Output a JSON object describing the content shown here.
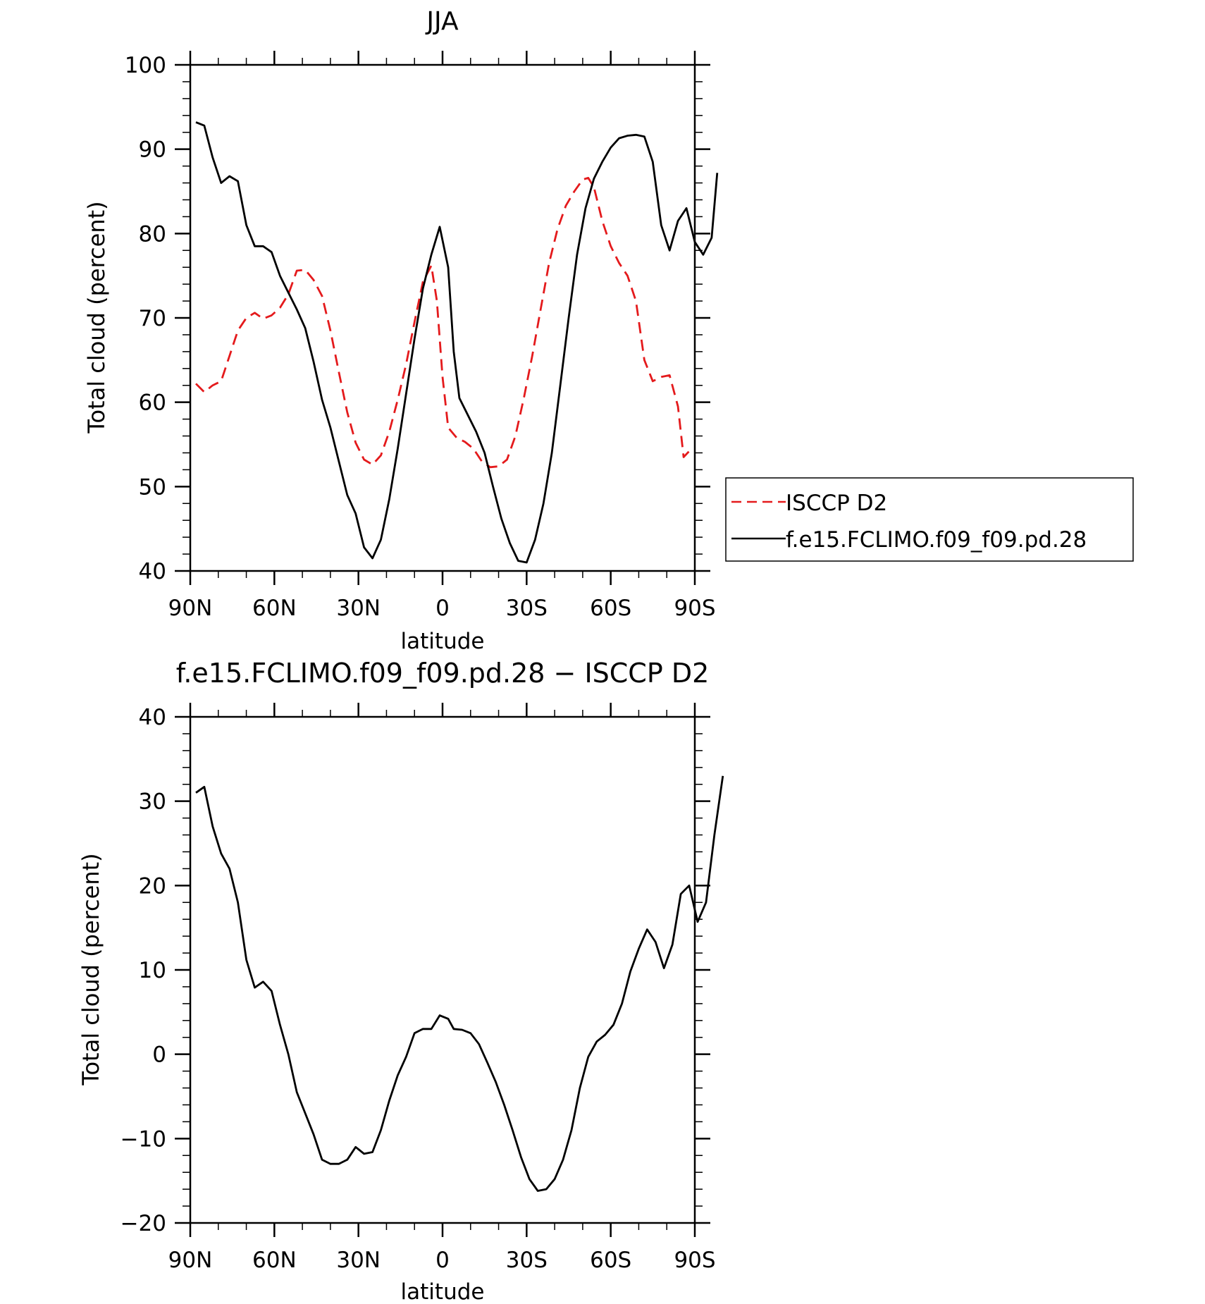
{
  "chart_data": [
    {
      "type": "line",
      "title": "JJA",
      "xlabel": "latitude",
      "ylabel": "Total cloud (percent)",
      "xlim": [
        -90,
        90
      ],
      "ylim": [
        40,
        100
      ],
      "x_ticks": [
        {
          "value": -90,
          "label": "90N"
        },
        {
          "value": -60,
          "label": "60N"
        },
        {
          "value": -30,
          "label": "30N"
        },
        {
          "value": 0,
          "label": "0"
        },
        {
          "value": 30,
          "label": "30S"
        },
        {
          "value": 60,
          "label": "60S"
        },
        {
          "value": 90,
          "label": "90S"
        }
      ],
      "y_ticks": [
        40,
        50,
        60,
        70,
        80,
        90,
        100
      ],
      "legend_position": "right",
      "series": [
        {
          "name": "ISCCP D2",
          "color": "#e41a1c",
          "dash": "dashed",
          "points": [
            [
              -88,
              62.2
            ],
            [
              -85,
              61.2
            ],
            [
              -82,
              62.0
            ],
            [
              -79,
              62.5
            ],
            [
              -76,
              65.5
            ],
            [
              -73,
              68.5
            ],
            [
              -70,
              70.0
            ],
            [
              -67,
              70.6
            ],
            [
              -64,
              69.9
            ],
            [
              -61,
              70.3
            ],
            [
              -58,
              71.2
            ],
            [
              -55,
              72.8
            ],
            [
              -52,
              75.6
            ],
            [
              -49,
              75.7
            ],
            [
              -46,
              74.5
            ],
            [
              -43,
              72.6
            ],
            [
              -40,
              68.5
            ],
            [
              -37,
              63.6
            ],
            [
              -34,
              58.8
            ],
            [
              -31,
              55.2
            ],
            [
              -28,
              53.2
            ],
            [
              -25,
              52.6
            ],
            [
              -22,
              53.7
            ],
            [
              -19,
              56.5
            ],
            [
              -16,
              60.3
            ],
            [
              -13,
              64.5
            ],
            [
              -10,
              69.5
            ],
            [
              -7,
              74.3
            ],
            [
              -4,
              76.2
            ],
            [
              -2,
              72.0
            ],
            [
              0,
              63.0
            ],
            [
              2,
              57.0
            ],
            [
              5,
              55.8
            ],
            [
              8,
              55.3
            ],
            [
              11,
              54.5
            ],
            [
              14,
              53.0
            ],
            [
              17,
              52.3
            ],
            [
              20,
              52.4
            ],
            [
              23,
              53.2
            ],
            [
              26,
              56.0
            ],
            [
              29,
              60.5
            ],
            [
              32,
              65.5
            ],
            [
              35,
              71.0
            ],
            [
              38,
              76.5
            ],
            [
              41,
              80.5
            ],
            [
              44,
              83.3
            ],
            [
              47,
              85.0
            ],
            [
              50,
              86.4
            ],
            [
              52,
              86.6
            ],
            [
              54,
              85.5
            ],
            [
              57,
              81.5
            ],
            [
              60,
              78.5
            ],
            [
              63,
              76.5
            ],
            [
              66,
              75.0
            ],
            [
              69,
              72.0
            ],
            [
              72,
              65.0
            ],
            [
              75,
              62.5
            ],
            [
              78,
              63.0
            ],
            [
              81,
              63.2
            ],
            [
              84,
              59.5
            ],
            [
              86,
              53.5
            ],
            [
              88,
              54.2
            ]
          ]
        },
        {
          "name": "f.e15.FCLIMO.f09_f09.pd.28",
          "color": "#000000",
          "dash": "solid",
          "points": [
            [
              -88,
              93.2
            ],
            [
              -85,
              92.8
            ],
            [
              -82,
              89.0
            ],
            [
              -79,
              86.0
            ],
            [
              -76,
              86.8
            ],
            [
              -73,
              86.2
            ],
            [
              -70,
              81.0
            ],
            [
              -67,
              78.5
            ],
            [
              -64,
              78.5
            ],
            [
              -61,
              77.8
            ],
            [
              -58,
              75.0
            ],
            [
              -55,
              73.0
            ],
            [
              -52,
              71.0
            ],
            [
              -49,
              68.8
            ],
            [
              -46,
              64.8
            ],
            [
              -43,
              60.3
            ],
            [
              -40,
              57.0
            ],
            [
              -37,
              53.0
            ],
            [
              -34,
              49.0
            ],
            [
              -31,
              46.8
            ],
            [
              -28,
              42.8
            ],
            [
              -25,
              41.5
            ],
            [
              -22,
              43.7
            ],
            [
              -19,
              48.5
            ],
            [
              -16,
              54.5
            ],
            [
              -13,
              61.0
            ],
            [
              -10,
              67.5
            ],
            [
              -7,
              73.5
            ],
            [
              -4,
              77.5
            ],
            [
              -1,
              80.8
            ],
            [
              2,
              76.0
            ],
            [
              4,
              66.0
            ],
            [
              6,
              60.5
            ],
            [
              9,
              58.5
            ],
            [
              12,
              56.5
            ],
            [
              15,
              54.0
            ],
            [
              18,
              50.0
            ],
            [
              21,
              46.2
            ],
            [
              24,
              43.3
            ],
            [
              27,
              41.2
            ],
            [
              30,
              41.0
            ],
            [
              33,
              43.7
            ],
            [
              36,
              48.0
            ],
            [
              39,
              54.0
            ],
            [
              42,
              62.0
            ],
            [
              45,
              70.0
            ],
            [
              48,
              77.5
            ],
            [
              51,
              83.0
            ],
            [
              54,
              86.5
            ],
            [
              57,
              88.5
            ],
            [
              60,
              90.2
            ],
            [
              63,
              91.3
            ],
            [
              66,
              91.6
            ],
            [
              69,
              91.7
            ],
            [
              72,
              91.5
            ],
            [
              75,
              88.5
            ],
            [
              78,
              81.0
            ],
            [
              81,
              78.0
            ],
            [
              84,
              81.5
            ],
            [
              87,
              83.0
            ],
            [
              90,
              79.0
            ],
            [
              93,
              77.5
            ],
            [
              96,
              79.5
            ],
            [
              98,
              87.2
            ]
          ]
        }
      ]
    },
    {
      "type": "line",
      "title": "f.e15.FCLIMO.f09_f09.pd.28 − ISCCP D2",
      "xlabel": "latitude",
      "ylabel": "Total cloud (percent)",
      "xlim": [
        -90,
        90
      ],
      "ylim": [
        -20,
        40
      ],
      "x_ticks": [
        {
          "value": -90,
          "label": "90N"
        },
        {
          "value": -60,
          "label": "60N"
        },
        {
          "value": -30,
          "label": "30N"
        },
        {
          "value": 0,
          "label": "0"
        },
        {
          "value": 30,
          "label": "30S"
        },
        {
          "value": 60,
          "label": "60S"
        },
        {
          "value": 90,
          "label": "90S"
        }
      ],
      "y_ticks": [
        -20,
        -10,
        0,
        10,
        20,
        30,
        40
      ],
      "series": [
        {
          "color": "#000000",
          "dash": "solid",
          "points": [
            [
              -88,
              31.0
            ],
            [
              -85,
              31.7
            ],
            [
              -82,
              27.0
            ],
            [
              -79,
              23.8
            ],
            [
              -76,
              22.0
            ],
            [
              -73,
              18.0
            ],
            [
              -70,
              11.2
            ],
            [
              -67,
              7.9
            ],
            [
              -64,
              8.6
            ],
            [
              -61,
              7.5
            ],
            [
              -58,
              3.5
            ],
            [
              -55,
              0.0
            ],
            [
              -52,
              -4.5
            ],
            [
              -49,
              -7.0
            ],
            [
              -46,
              -9.5
            ],
            [
              -43,
              -12.5
            ],
            [
              -40,
              -13.0
            ],
            [
              -37,
              -13.0
            ],
            [
              -34,
              -12.5
            ],
            [
              -31,
              -11.0
            ],
            [
              -28,
              -11.8
            ],
            [
              -25,
              -11.6
            ],
            [
              -22,
              -9.0
            ],
            [
              -19,
              -5.5
            ],
            [
              -16,
              -2.5
            ],
            [
              -13,
              -0.3
            ],
            [
              -10,
              2.5
            ],
            [
              -7,
              3.0
            ],
            [
              -4,
              3.0
            ],
            [
              -1,
              4.6
            ],
            [
              2,
              4.2
            ],
            [
              4,
              3.0
            ],
            [
              7,
              2.9
            ],
            [
              10,
              2.5
            ],
            [
              13,
              1.2
            ],
            [
              16,
              -1.0
            ],
            [
              19,
              -3.3
            ],
            [
              22,
              -6.0
            ],
            [
              25,
              -9.0
            ],
            [
              28,
              -12.2
            ],
            [
              31,
              -14.8
            ],
            [
              34,
              -16.2
            ],
            [
              37,
              -16.0
            ],
            [
              40,
              -14.8
            ],
            [
              43,
              -12.5
            ],
            [
              46,
              -9.0
            ],
            [
              49,
              -4.0
            ],
            [
              52,
              -0.3
            ],
            [
              55,
              1.5
            ],
            [
              58,
              2.3
            ],
            [
              61,
              3.5
            ],
            [
              64,
              6.0
            ],
            [
              67,
              9.8
            ],
            [
              70,
              12.5
            ],
            [
              73,
              14.8
            ],
            [
              76,
              13.3
            ],
            [
              79,
              10.2
            ],
            [
              82,
              13.0
            ],
            [
              85,
              19.0
            ],
            [
              88,
              20.0
            ],
            [
              91,
              15.7
            ],
            [
              94,
              18.0
            ],
            [
              97,
              26.0
            ],
            [
              100,
              33.0
            ]
          ]
        }
      ]
    }
  ]
}
